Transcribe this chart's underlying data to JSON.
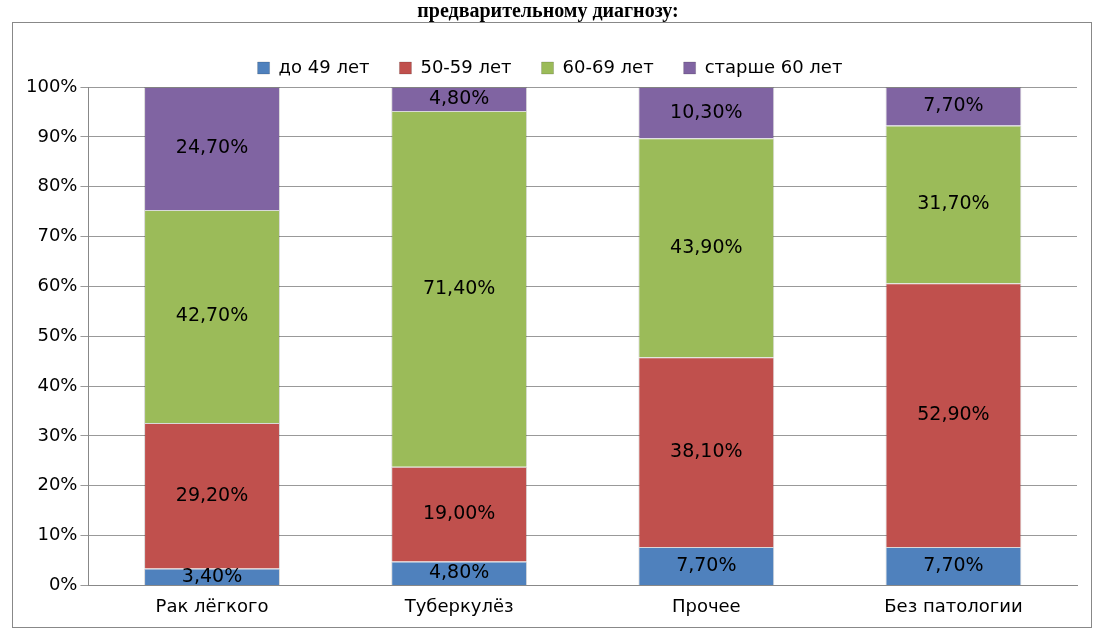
{
  "chart_data": {
    "type": "bar",
    "title": "предварительному диагнозу:",
    "stacked": true,
    "categories": [
      "Рак лёгкого",
      "Туберкулёз",
      "Прочее",
      "Без патологии"
    ],
    "series": [
      {
        "name": "до 49 лет",
        "color": "#4f81bd",
        "values": [
          3.4,
          4.8,
          7.7,
          7.7
        ],
        "value_labels": [
          "3,40%",
          "4,80%",
          "7,70%",
          "7,70%"
        ]
      },
      {
        "name": "50-59 лет",
        "color": "#c0504d",
        "values": [
          29.2,
          19.0,
          38.1,
          52.9
        ],
        "value_labels": [
          "29,20%",
          "19,00%",
          "38,10%",
          "52,90%"
        ]
      },
      {
        "name": "60-69 лет",
        "color": "#9bbb59",
        "values": [
          42.7,
          71.4,
          43.9,
          31.7
        ],
        "value_labels": [
          "42,70%",
          "71,40%",
          "43,90%",
          "31,70%"
        ]
      },
      {
        "name": "старше 60 лет",
        "color": "#8064a2",
        "values": [
          24.7,
          4.8,
          10.3,
          7.7
        ],
        "value_labels": [
          "24,70%",
          "4,80%",
          "10,30%",
          "7,70%"
        ]
      }
    ],
    "ylim": [
      0,
      100
    ],
    "yticks": [
      {
        "value": 0,
        "label": "0%"
      },
      {
        "value": 10,
        "label": "10%"
      },
      {
        "value": 20,
        "label": "20%"
      },
      {
        "value": 30,
        "label": "30%"
      },
      {
        "value": 40,
        "label": "40%"
      },
      {
        "value": 50,
        "label": "50%"
      },
      {
        "value": 60,
        "label": "60%"
      },
      {
        "value": 70,
        "label": "70%"
      },
      {
        "value": 80,
        "label": "80%"
      },
      {
        "value": 90,
        "label": "90%"
      },
      {
        "value": 100,
        "label": "100%"
      }
    ],
    "grid": "y",
    "legend": "top"
  }
}
